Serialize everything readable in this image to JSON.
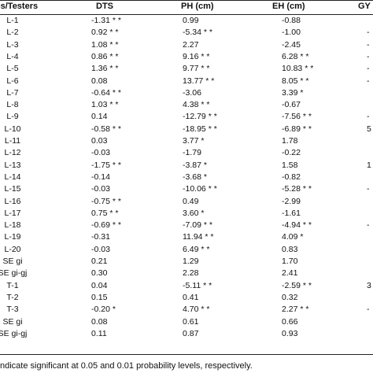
{
  "headers": {
    "label": "Lines/Testers",
    "dts": "DTS",
    "ph": "PH (cm)",
    "eh": "EH (cm)",
    "gy": "GY"
  },
  "rows": [
    {
      "label": "L-1",
      "dts": "-1.31 * *",
      "ph": "0.99",
      "eh": "-0.88",
      "gy": ""
    },
    {
      "label": "L-2",
      "dts": "0.92 * *",
      "ph": "-5.34 * *",
      "eh": "-1.00",
      "gy": "-"
    },
    {
      "label": "L-3",
      "dts": "1.08 * *",
      "ph": "2.27",
      "eh": "-2.45",
      "gy": "-"
    },
    {
      "label": "L-4",
      "dts": "0.86 * *",
      "ph": "9.16 * *",
      "eh": "6.28 * *",
      "gy": "-"
    },
    {
      "label": "L-5",
      "dts": "1.36 * *",
      "ph": "9.77 * *",
      "eh": "10.83 * *",
      "gy": "-"
    },
    {
      "label": "L-6",
      "dts": "0.08",
      "ph": "13.77 * *",
      "eh": "8.05 * *",
      "gy": "-"
    },
    {
      "label": "L-7",
      "dts": "-0.64 * *",
      "ph": "-3.06",
      "eh": "3.39 *",
      "gy": ""
    },
    {
      "label": "L-8",
      "dts": "1.03 * *",
      "ph": "4.38 * *",
      "eh": "-0.67",
      "gy": ""
    },
    {
      "label": "L-9",
      "dts": "0.14",
      "ph": "-12.79 * *",
      "eh": "-7.56 * *",
      "gy": "-"
    },
    {
      "label": "L-10",
      "dts": "-0.58 * *",
      "ph": "-18.95 * *",
      "eh": "-6.89 * *",
      "gy": "5"
    },
    {
      "label": "L-11",
      "dts": "0.03",
      "ph": "3.77 *",
      "eh": "1.78",
      "gy": ""
    },
    {
      "label": "L-12",
      "dts": "-0.03",
      "ph": "-1.79",
      "eh": "-0.22",
      "gy": ""
    },
    {
      "label": "L-13",
      "dts": "-1.75 * *",
      "ph": "-3.87 *",
      "eh": "1.58",
      "gy": "1"
    },
    {
      "label": "L-14",
      "dts": "-0.14",
      "ph": "-3.68 *",
      "eh": "-0.82",
      "gy": ""
    },
    {
      "label": "L-15",
      "dts": "-0.03",
      "ph": "-10.06 * *",
      "eh": "-5.28 * *",
      "gy": "-"
    },
    {
      "label": "L-16",
      "dts": "-0.75 * *",
      "ph": "0.49",
      "eh": "-2.99",
      "gy": ""
    },
    {
      "label": "L-17",
      "dts": "0.75 * *",
      "ph": "3.60 *",
      "eh": "-1.61",
      "gy": ""
    },
    {
      "label": "L-18",
      "dts": "-0.69 * *",
      "ph": "-7.09 * *",
      "eh": "-4.94 * *",
      "gy": "-"
    },
    {
      "label": "L-19",
      "dts": "-0.31",
      "ph": "11.94 * *",
      "eh": "4.09 *",
      "gy": ""
    },
    {
      "label": "L-20",
      "dts": "-0.03",
      "ph": "6.49 * *",
      "eh": "0.83",
      "gy": ""
    },
    {
      "label": "SE gi",
      "dts": "0.21",
      "ph": "1.29",
      "eh": "1.70",
      "gy": ""
    },
    {
      "label": "SE gi-gj",
      "dts": "0.30",
      "ph": "2.28",
      "eh": "2.41",
      "gy": ""
    },
    {
      "label": "T-1",
      "dts": "0.04",
      "ph": "-5.11 * *",
      "eh": "-2.59 * *",
      "gy": "3"
    },
    {
      "label": "T-2",
      "dts": "0.15",
      "ph": "0.41",
      "eh": "0.32",
      "gy": ""
    },
    {
      "label": "T-3",
      "dts": "-0.20 *",
      "ph": "4.70 * *",
      "eh": "2.27 * *",
      "gy": "-"
    },
    {
      "label": "SE gi",
      "dts": "0.08",
      "ph": "0.61",
      "eh": "0.66",
      "gy": ""
    },
    {
      "label": "SE gi-gj",
      "dts": "0.11",
      "ph": "0.87",
      "eh": "0.93",
      "gy": ""
    }
  ],
  "footnote": "ndicate significant at 0.05 and 0.01 probability levels, respectively."
}
